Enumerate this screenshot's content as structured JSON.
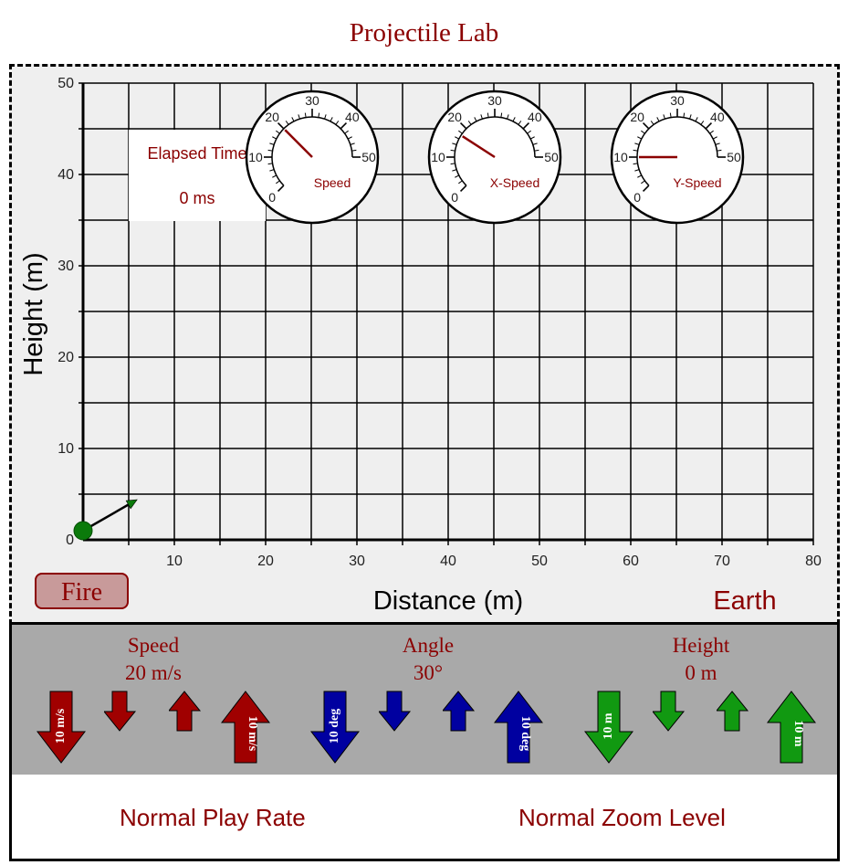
{
  "page": {
    "title": "Projectile Lab"
  },
  "plot": {
    "x_axis_label": "Distance (m)",
    "y_axis_label": "Height (m)",
    "x_range": [
      0,
      80
    ],
    "y_range": [
      0,
      50
    ],
    "x_ticks": [
      "10",
      "20",
      "30",
      "40",
      "50",
      "60",
      "70",
      "80"
    ],
    "y_ticks": [
      "0",
      "10",
      "20",
      "30",
      "40",
      "50"
    ],
    "planet": "Earth",
    "launcher_color": "#0b7a0b"
  },
  "elapsed": {
    "label": "Elapsed Time",
    "value": "0 ms"
  },
  "gauges": [
    {
      "label": "Speed",
      "value": 20,
      "ticks": [
        "0",
        "10",
        "20",
        "30",
        "40",
        "50"
      ]
    },
    {
      "label": "X-Speed",
      "value": 17.3,
      "ticks": [
        "0",
        "10",
        "20",
        "30",
        "40",
        "50"
      ]
    },
    {
      "label": "Y-Speed",
      "value": 10,
      "ticks": [
        "0",
        "10",
        "20",
        "30",
        "40",
        "50"
      ]
    }
  ],
  "fire_button": {
    "label": "Fire"
  },
  "controls": {
    "speed": {
      "label": "Speed",
      "value": "20 m/s",
      "big_step_label": "10 m/s",
      "color": "#a00000"
    },
    "angle": {
      "label": "Angle",
      "value": "30°",
      "big_step_label": "10 deg",
      "color": "#0000a0"
    },
    "height": {
      "label": "Height",
      "value": "0 m",
      "big_step_label": "10 m",
      "color": "#119911"
    }
  },
  "status": {
    "play_rate": "Normal Play Rate",
    "zoom_level": "Normal Zoom Level"
  }
}
